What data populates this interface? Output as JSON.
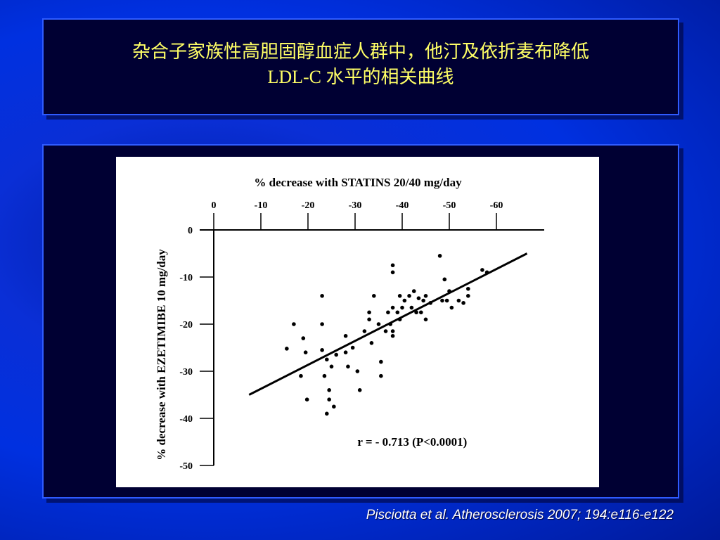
{
  "title": {
    "line1": "杂合子家族性高胆固醇血症人群中，他汀及依折麦布降低",
    "line2": "LDL-C 水平的相关曲线"
  },
  "citation": "Pisciotta et al. Atherosclerosis 2007; 194:e116-e122",
  "chart_data": {
    "type": "scatter",
    "xlabel": "% decrease with STATINS 20/40 mg/day",
    "ylabel": "% decrease with EZETIMIBE 10 mg/day",
    "x_ticks": [
      0,
      -10,
      -20,
      -30,
      -40,
      -50,
      -60
    ],
    "y_ticks": [
      0,
      -10,
      -20,
      -30,
      -40,
      -50
    ],
    "xlim": [
      0,
      -70
    ],
    "ylim": [
      0,
      -50
    ],
    "x_axis_position": "top",
    "grid": false,
    "annotation": "r = - 0.713 (P<0.0001)",
    "trendline": {
      "x": [
        -7.5,
        -66.5
      ],
      "y": [
        -35,
        -5
      ]
    },
    "points": [
      [
        -15.5,
        -25.2
      ],
      [
        -17,
        -20
      ],
      [
        -19,
        -23
      ],
      [
        -19.5,
        -26
      ],
      [
        -18.5,
        -31
      ],
      [
        -19.8,
        -36
      ],
      [
        -23,
        -14
      ],
      [
        -23,
        -20
      ],
      [
        -23,
        -25.5
      ],
      [
        -23.5,
        -31
      ],
      [
        -24.5,
        -34
      ],
      [
        -24.5,
        -36
      ],
      [
        -24,
        -39
      ],
      [
        -24,
        -27.5
      ],
      [
        -25,
        -29
      ],
      [
        -26,
        -26.5
      ],
      [
        -25.5,
        -37.5
      ],
      [
        -28,
        -22.5
      ],
      [
        -28,
        -26
      ],
      [
        -28.5,
        -29
      ],
      [
        -29.5,
        -25
      ],
      [
        -30.5,
        -30
      ],
      [
        -31,
        -34
      ],
      [
        -32,
        -21.5
      ],
      [
        -33,
        -17.5
      ],
      [
        -33,
        -19
      ],
      [
        -33.5,
        -24
      ],
      [
        -34,
        -14
      ],
      [
        -35,
        -20
      ],
      [
        -35.5,
        -28
      ],
      [
        -35.5,
        -31
      ],
      [
        -36.5,
        -21.5
      ],
      [
        -37,
        -17.5
      ],
      [
        -37.5,
        -20
      ],
      [
        -38,
        -7.5
      ],
      [
        -38,
        -9
      ],
      [
        -38,
        -16.5
      ],
      [
        -38,
        -21.5
      ],
      [
        -38,
        -22.5
      ],
      [
        -39,
        -17.5
      ],
      [
        -39.5,
        -14
      ],
      [
        -39.5,
        -19
      ],
      [
        -40,
        -16.5
      ],
      [
        -40.5,
        -15
      ],
      [
        -41.5,
        -14
      ],
      [
        -42,
        -16.5
      ],
      [
        -42.5,
        -13
      ],
      [
        -43,
        -17.5
      ],
      [
        -43.5,
        -14.5
      ],
      [
        -44,
        -17.5
      ],
      [
        -44.5,
        -15
      ],
      [
        -45,
        -14
      ],
      [
        -45,
        -19
      ],
      [
        -46,
        -15.5
      ],
      [
        -48,
        -5.5
      ],
      [
        -48.5,
        -15
      ],
      [
        -49,
        -10.5
      ],
      [
        -49.5,
        -15
      ],
      [
        -50,
        -13
      ],
      [
        -50.5,
        -16.5
      ],
      [
        -52,
        -15
      ],
      [
        -53,
        -15.5
      ],
      [
        -54,
        -12.5
      ],
      [
        -54,
        -14
      ],
      [
        -57,
        -8.5
      ],
      [
        -58,
        -9
      ]
    ]
  }
}
